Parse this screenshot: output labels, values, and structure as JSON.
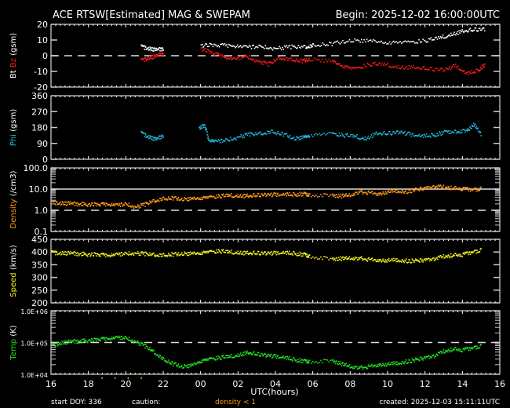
{
  "header": {
    "title": "ACE RTSW[Estimated] MAG & SWEPAM",
    "begin": "Begin: 2025-12-02 16:00:00UTC"
  },
  "footer": {
    "start_doy": "start DOY: 336",
    "caution_label": "caution:",
    "caution_value": "density < 1",
    "created": "created: 2025-12-03 15:11:11UTC",
    "xlabel": "UTC(hours)"
  },
  "colors": {
    "background": "#000000",
    "frame": "#ffffff",
    "bt": "#ffffff",
    "bz": "#ff1a1a",
    "phi": "#22b8d8",
    "density": "#ff9a1a",
    "speed": "#f0f020",
    "temp": "#22e022"
  },
  "chart_data": [
    {
      "type": "scatter",
      "title": "ACE RTSW[Estimated] MAG & SWEPAM",
      "panel": "Bt/Bz",
      "ylabel_parts": [
        "Bt",
        "Bz",
        "(gsm)"
      ],
      "ylim": [
        -20,
        20
      ],
      "yticks": [
        "20",
        "10",
        "0",
        "-10",
        "-20"
      ],
      "reference_lines": [
        {
          "y": 0,
          "style": "dashed"
        }
      ],
      "series": [
        {
          "name": "Bt",
          "color": "#ffffff",
          "x": [
            20.8,
            21.2,
            21.6,
            22.0,
            24.0,
            24.8,
            25.6,
            26.4,
            27.2,
            28.0,
            28.8,
            29.6,
            30.0,
            31.0,
            32.0,
            33.0,
            34.0,
            35.0,
            36.0,
            36.8,
            37.4,
            38.0,
            38.6,
            39.2
          ],
          "y": [
            6,
            5,
            4,
            5,
            7,
            7,
            7,
            6,
            6,
            5,
            6,
            6,
            7,
            8,
            10,
            10,
            9,
            9,
            10,
            12,
            14,
            16,
            17,
            17
          ]
        },
        {
          "name": "Bz",
          "color": "#ff1a1a",
          "x": [
            20.8,
            21.2,
            21.6,
            22.0,
            24.0,
            24.6,
            25.2,
            25.8,
            26.4,
            27.0,
            27.6,
            28.2,
            28.8,
            29.4,
            29.8,
            31.0,
            31.6,
            32.2,
            33.0,
            33.8,
            34.6,
            35.4,
            36.2,
            37.0,
            37.6,
            38.2,
            38.8,
            39.2
          ],
          "y": [
            -3,
            -1,
            0,
            2,
            5,
            2,
            0,
            -2,
            0,
            -3,
            -5,
            -1,
            -2,
            -3,
            -2,
            -3,
            -6,
            -8,
            -5,
            -5,
            -7,
            -7,
            -8,
            -9,
            -6,
            -11,
            -9,
            -5
          ]
        }
      ]
    },
    {
      "type": "scatter",
      "panel": "Phi",
      "ylabel_parts": [
        "Phi",
        "(gsm)"
      ],
      "ylim": [
        0,
        360
      ],
      "yticks": [
        "360",
        "270",
        "180",
        "90",
        "0"
      ],
      "series": [
        {
          "name": "Phi",
          "color": "#22b8d8",
          "x": [
            20.8,
            21.2,
            21.6,
            22.0,
            23.9,
            24.2,
            24.4,
            24.8,
            25.4,
            26.0,
            26.6,
            27.2,
            27.8,
            28.4,
            29.0,
            29.5,
            29.8,
            31.0,
            31.6,
            32.2,
            32.8,
            33.4,
            34.0,
            34.6,
            35.2,
            35.8,
            36.4,
            37.0,
            37.6,
            38.2,
            38.6,
            39.0
          ],
          "y": [
            150,
            130,
            115,
            140,
            180,
            195,
            115,
            105,
            110,
            130,
            145,
            150,
            160,
            145,
            120,
            130,
            140,
            150,
            140,
            135,
            120,
            150,
            150,
            155,
            145,
            135,
            140,
            155,
            160,
            165,
            200,
            140
          ]
        }
      ]
    },
    {
      "type": "scatter",
      "panel": "Density",
      "ylabel_parts": [
        "Density",
        "(/cm3)"
      ],
      "yscale": "log",
      "ylim": [
        0.1,
        100.0
      ],
      "yticks": [
        "100.0",
        "10.0",
        "1.0",
        "0.1"
      ],
      "reference_lines": [
        {
          "y": 10.0,
          "style": "solid"
        },
        {
          "y": 1.0,
          "style": "dashed"
        }
      ],
      "series": [
        {
          "name": "Density",
          "color": "#ff9a1a",
          "x": [
            16.0,
            16.5,
            17.0,
            17.5,
            18.0,
            18.5,
            19.0,
            19.5,
            20.0,
            20.5,
            21.0,
            21.5,
            22.0,
            22.5,
            23.0,
            23.5,
            24.0,
            24.5,
            25.0,
            25.5,
            26.0,
            26.5,
            27.0,
            27.5,
            28.0,
            28.5,
            29.0,
            29.5,
            29.8,
            31.0,
            31.5,
            32.0,
            32.5,
            33.0,
            33.5,
            34.0,
            34.5,
            35.0,
            35.5,
            36.0,
            36.5,
            37.0,
            37.5,
            38.0,
            38.5,
            39.0
          ],
          "y": [
            2.5,
            2.3,
            2.2,
            2.1,
            2.0,
            2.0,
            2.1,
            1.9,
            2.0,
            1.5,
            2.0,
            3.0,
            3.8,
            4.0,
            3.5,
            3.8,
            4.2,
            4.5,
            5.0,
            5.5,
            5.2,
            5.0,
            5.5,
            5.5,
            5.8,
            6.0,
            6.0,
            6.2,
            5.5,
            5.5,
            5.0,
            5.5,
            8.0,
            7.0,
            6.0,
            8.0,
            9.0,
            8.0,
            10.0,
            12.0,
            14.0,
            13.0,
            12.0,
            11.0,
            10.0,
            11.0
          ]
        }
      ]
    },
    {
      "type": "scatter",
      "panel": "Speed",
      "ylabel_parts": [
        "Speed",
        "(km/s)"
      ],
      "ylim": [
        200,
        450
      ],
      "yticks": [
        "450",
        "400",
        "350",
        "300",
        "250",
        "200"
      ],
      "series": [
        {
          "name": "Speed",
          "color": "#f0f020",
          "x": [
            16.0,
            16.5,
            17.0,
            17.5,
            18.0,
            18.5,
            19.0,
            19.5,
            20.0,
            20.5,
            21.0,
            21.5,
            22.0,
            22.5,
            23.0,
            23.5,
            24.0,
            24.5,
            25.0,
            25.5,
            26.0,
            26.5,
            27.0,
            27.5,
            28.0,
            28.5,
            29.0,
            29.5,
            29.8,
            31.0,
            31.5,
            32.0,
            32.5,
            33.0,
            33.5,
            34.0,
            34.5,
            35.0,
            35.5,
            36.0,
            36.5,
            37.0,
            37.5,
            38.0,
            38.5,
            39.0
          ],
          "y": [
            400,
            398,
            397,
            395,
            393,
            392,
            390,
            393,
            395,
            398,
            395,
            392,
            390,
            393,
            395,
            397,
            400,
            404,
            406,
            403,
            400,
            398,
            398,
            396,
            398,
            400,
            397,
            392,
            385,
            375,
            376,
            378,
            378,
            372,
            368,
            370,
            372,
            367,
            368,
            372,
            376,
            385,
            390,
            392,
            402,
            410
          ]
        }
      ]
    },
    {
      "type": "scatter",
      "panel": "Temp",
      "ylabel_parts": [
        "Temp",
        "(K)"
      ],
      "yscale": "log",
      "ylim": [
        10000,
        1000000
      ],
      "yticks": [
        "1.0E+06",
        "1.0E+05",
        "1.0E+04"
      ],
      "reference_lines": [
        {
          "y": 100000,
          "style": "dashed"
        }
      ],
      "series": [
        {
          "name": "Temp",
          "color": "#22e022",
          "x": [
            16.0,
            16.5,
            17.0,
            17.5,
            18.0,
            18.5,
            19.0,
            19.5,
            20.0,
            20.5,
            21.0,
            21.5,
            22.0,
            22.5,
            23.0,
            23.5,
            24.0,
            24.5,
            25.0,
            25.5,
            26.0,
            26.5,
            27.0,
            27.5,
            28.0,
            28.5,
            29.0,
            29.5,
            29.8,
            31.0,
            31.5,
            32.0,
            32.5,
            33.0,
            33.5,
            34.0,
            34.5,
            35.0,
            35.5,
            36.0,
            36.5,
            37.0,
            37.5,
            38.0,
            38.5,
            39.0
          ],
          "y": [
            80000,
            100000,
            110000,
            115000,
            120000,
            130000,
            140000,
            150000,
            140000,
            110000,
            80000,
            50000,
            30000,
            22000,
            18000,
            20000,
            28000,
            32000,
            35000,
            38000,
            42000,
            50000,
            45000,
            40000,
            38000,
            35000,
            30000,
            27000,
            26000,
            28000,
            22000,
            18000,
            17000,
            18000,
            20000,
            22000,
            24000,
            26000,
            30000,
            35000,
            40000,
            55000,
            65000,
            60000,
            70000,
            80000
          ]
        }
      ]
    }
  ],
  "xaxis": {
    "xlabel": "UTC(hours)",
    "ticks": [
      "16",
      "18",
      "20",
      "22",
      "00",
      "02",
      "04",
      "06",
      "08",
      "10",
      "12",
      "14",
      "16"
    ],
    "range_hours": [
      16,
      40
    ]
  }
}
